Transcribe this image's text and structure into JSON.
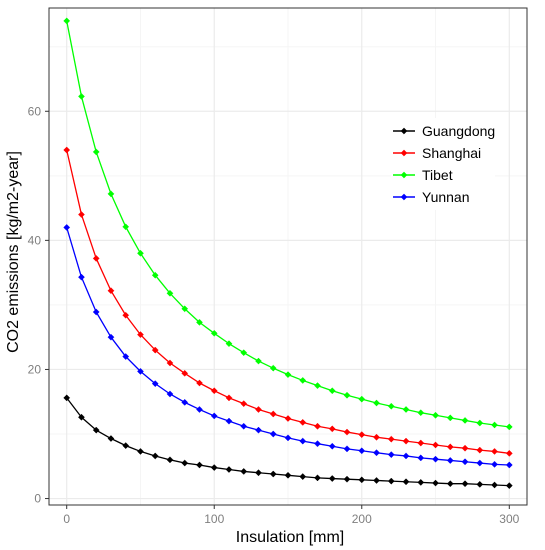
{
  "chart_data": {
    "type": "line",
    "title": "",
    "xlabel": "Insulation [mm]",
    "ylabel": "CO2 emissions [kg/m2-year]",
    "xlim": [
      -12,
      312
    ],
    "ylim": [
      -1,
      76
    ],
    "x_ticks": [
      0,
      100,
      200,
      300
    ],
    "y_ticks": [
      0,
      20,
      40,
      60
    ],
    "grid": true,
    "legend_position": "right",
    "colors": {
      "background": "#ffffff",
      "grid": "#ebebeb",
      "panel_border": "#333333",
      "Guangdong": "#000000",
      "Shanghai": "#ff0000",
      "Tibet": "#00ff00",
      "Yunnan": "#0000ff"
    },
    "x": [
      0,
      10,
      20,
      30,
      40,
      50,
      60,
      70,
      80,
      90,
      100,
      110,
      120,
      130,
      140,
      150,
      160,
      170,
      180,
      190,
      200,
      210,
      220,
      230,
      240,
      250,
      260,
      270,
      280,
      290,
      300
    ],
    "series": [
      {
        "name": "Guangdong",
        "values": [
          15.6,
          12.6,
          10.6,
          9.3,
          8.2,
          7.3,
          6.6,
          6.0,
          5.5,
          5.2,
          4.8,
          4.5,
          4.2,
          4.0,
          3.8,
          3.6,
          3.4,
          3.2,
          3.1,
          3.0,
          2.9,
          2.8,
          2.7,
          2.6,
          2.5,
          2.4,
          2.3,
          2.3,
          2.2,
          2.1,
          2.0
        ]
      },
      {
        "name": "Shanghai",
        "values": [
          54.0,
          44.0,
          37.2,
          32.2,
          28.4,
          25.4,
          23.0,
          21.0,
          19.4,
          17.9,
          16.7,
          15.6,
          14.7,
          13.8,
          13.1,
          12.4,
          11.8,
          11.2,
          10.8,
          10.3,
          9.9,
          9.5,
          9.2,
          8.9,
          8.6,
          8.3,
          8.0,
          7.8,
          7.5,
          7.3,
          7.0
        ]
      },
      {
        "name": "Tibet",
        "values": [
          74.0,
          62.3,
          53.7,
          47.2,
          42.1,
          38.0,
          34.6,
          31.8,
          29.4,
          27.3,
          25.6,
          24.0,
          22.6,
          21.3,
          20.2,
          19.2,
          18.3,
          17.5,
          16.7,
          16.0,
          15.4,
          14.8,
          14.3,
          13.8,
          13.3,
          12.9,
          12.5,
          12.1,
          11.7,
          11.4,
          11.1
        ]
      },
      {
        "name": "Yunnan",
        "values": [
          42.0,
          34.3,
          28.9,
          25.0,
          22.0,
          19.7,
          17.8,
          16.2,
          14.9,
          13.8,
          12.8,
          12.0,
          11.2,
          10.6,
          10.0,
          9.4,
          8.9,
          8.5,
          8.1,
          7.7,
          7.4,
          7.1,
          6.8,
          6.6,
          6.3,
          6.1,
          5.9,
          5.7,
          5.5,
          5.3,
          5.2
        ]
      }
    ]
  }
}
